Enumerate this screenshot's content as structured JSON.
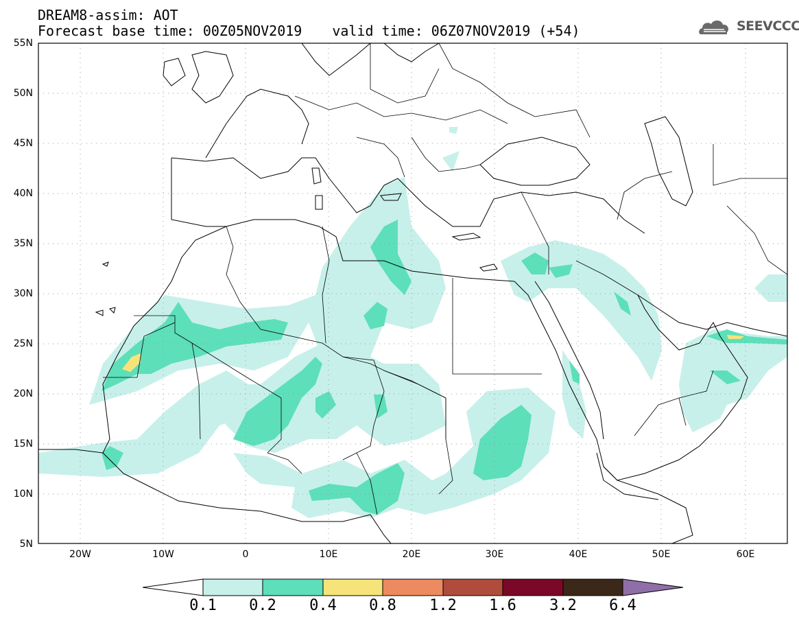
{
  "title": {
    "line1": "DREAM8-assim: AOT",
    "base_time": "Forecast base time: 00Z05NOV2019",
    "valid_time": "valid time: 06Z07NOV2019 (+54)"
  },
  "logo": {
    "text": "SEEVCCC",
    "icon": "cloud-logo-icon"
  },
  "map": {
    "lon_range": [
      -25,
      65
    ],
    "lat_range": [
      5,
      55
    ],
    "lat_labels": [
      "55N",
      "50N",
      "45N",
      "40N",
      "35N",
      "30N",
      "25N",
      "20N",
      "15N",
      "10N",
      "5N"
    ],
    "lon_labels": [
      "20W",
      "10W",
      "0",
      "10E",
      "20E",
      "30E",
      "40E",
      "50E",
      "60E"
    ],
    "lat_values": [
      55,
      50,
      45,
      40,
      35,
      30,
      25,
      20,
      15,
      10,
      5
    ],
    "lon_values": [
      -20,
      -10,
      0,
      10,
      20,
      30,
      40,
      50,
      60
    ],
    "grid": "dotted"
  },
  "colorbar": {
    "labels": [
      "0.1",
      "0.2",
      "0.4",
      "0.8",
      "1.2",
      "1.6",
      "3.2",
      "6.4"
    ],
    "colors": [
      "#ffffff",
      "#c7f0ea",
      "#5ddfb9",
      "#f6e47a",
      "#ec8a60",
      "#b04c3c",
      "#7a0826",
      "#3b2818",
      "#8f6fa8"
    ]
  }
}
